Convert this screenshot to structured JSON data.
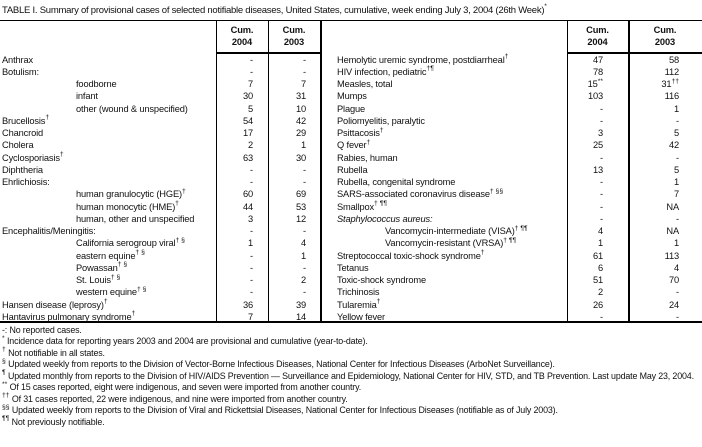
{
  "ink": "#000000",
  "title": {
    "text": "TABLE I. Summary of provisional cases of selected notifiable diseases, United States, cumulative, week ending July 3, 2004 (26th Week)",
    "sup": "*"
  },
  "header": {
    "cum": "Cum.",
    "y2004": "2004",
    "y2003": "2003"
  },
  "left_table": {
    "rows": [
      {
        "label": "Anthrax",
        "c2004": "-",
        "c2003": "-"
      },
      {
        "label": "Botulism:",
        "c2004": "-",
        "c2003": "-"
      },
      {
        "label": "foodborne",
        "indent": true,
        "c2004": "7",
        "c2003": "7"
      },
      {
        "label": "infant",
        "indent": true,
        "c2004": "30",
        "c2003": "31"
      },
      {
        "label": "other (wound & unspecified)",
        "indent": true,
        "c2004": "5",
        "c2003": "10"
      },
      {
        "label": "Brucellosis",
        "sup": "†",
        "c2004": "54",
        "c2003": "42"
      },
      {
        "label": "Chancroid",
        "c2004": "17",
        "c2003": "29"
      },
      {
        "label": "Cholera",
        "c2004": "2",
        "c2003": "1"
      },
      {
        "label": "Cyclosporiasis",
        "sup": "†",
        "c2004": "63",
        "c2003": "30"
      },
      {
        "label": "Diphtheria",
        "c2004": "-",
        "c2003": "-"
      },
      {
        "label": "Ehrlichiosis:",
        "c2004": "-",
        "c2003": "-"
      },
      {
        "label": "human granulocytic (HGE)",
        "sup": "†",
        "indent": true,
        "c2004": "60",
        "c2003": "69"
      },
      {
        "label": "human monocytic (HME)",
        "sup": "†",
        "indent": true,
        "c2004": "44",
        "c2003": "53"
      },
      {
        "label": "human, other and unspecified",
        "indent": true,
        "c2004": "3",
        "c2003": "12"
      },
      {
        "label": "Encephalitis/Meningitis:",
        "c2004": "-",
        "c2003": "-"
      },
      {
        "label": "California serogroup viral",
        "sup": "† §",
        "indent": true,
        "c2004": "1",
        "c2003": "4"
      },
      {
        "label": "eastern equine",
        "sup": "† §",
        "indent": true,
        "c2004": "-",
        "c2003": "1"
      },
      {
        "label": "Powassan",
        "sup": "† §",
        "indent": true,
        "c2004": "-",
        "c2003": "-"
      },
      {
        "label": "St. Louis",
        "sup": "† §",
        "indent": true,
        "c2004": "-",
        "c2003": "2"
      },
      {
        "label": "western equine",
        "sup": "† §",
        "indent": true,
        "c2004": "-",
        "c2003": "-"
      },
      {
        "label": "Hansen disease (leprosy)",
        "sup": "†",
        "c2004": "36",
        "c2003": "39"
      },
      {
        "label": "Hantavirus pulmonary syndrome",
        "sup": "†",
        "c2004": "7",
        "c2003": "14"
      }
    ]
  },
  "right_table": {
    "rows": [
      {
        "label": "Hemolytic uremic syndrome, postdiarrheal",
        "sup": "†",
        "c2004": "47",
        "c2003": "58"
      },
      {
        "label": "HIV infection, pediatric",
        "sup": "†¶",
        "c2004": "78",
        "c2003": "112"
      },
      {
        "label": "Measles, total",
        "c2004": "15",
        "c2004_sup": "**",
        "c2003": "31",
        "c2003_sup": "††"
      },
      {
        "label": "Mumps",
        "c2004": "103",
        "c2003": "116"
      },
      {
        "label": "Plague",
        "c2004": "-",
        "c2003": "1"
      },
      {
        "label": "Poliomyelitis, paralytic",
        "c2004": "-",
        "c2003": "-"
      },
      {
        "label": "Psittacosis",
        "sup": "†",
        "c2004": "3",
        "c2003": "5"
      },
      {
        "label": "Q fever",
        "sup": "†",
        "c2004": "25",
        "c2003": "42"
      },
      {
        "label": "Rabies, human",
        "c2004": "-",
        "c2003": "-"
      },
      {
        "label": "Rubella",
        "c2004": "13",
        "c2003": "5"
      },
      {
        "label": "Rubella, congenital syndrome",
        "c2004": "-",
        "c2003": "1"
      },
      {
        "label": "SARS-associated coronavirus disease",
        "sup": "† §§",
        "c2004": "-",
        "c2003": "7"
      },
      {
        "label": "Smallpox",
        "sup": "† ¶¶",
        "c2004": "-",
        "c2003": "NA"
      },
      {
        "label": "Staphylococcus aureus:",
        "italic": true,
        "c2004": "-",
        "c2003": "-"
      },
      {
        "label": "Vancomycin-intermediate (VISA)",
        "sup": "† ¶¶",
        "indent": true,
        "c2004": "4",
        "c2003": "NA"
      },
      {
        "label": "Vancomycin-resistant (VRSA)",
        "sup": "† ¶¶",
        "indent": true,
        "c2004": "1",
        "c2003": "1"
      },
      {
        "label": "Streptococcal toxic-shock syndrome",
        "sup": "†",
        "c2004": "61",
        "c2003": "113"
      },
      {
        "label": "Tetanus",
        "c2004": "6",
        "c2003": "4"
      },
      {
        "label": "Toxic-shock syndrome",
        "c2004": "51",
        "c2003": "70"
      },
      {
        "label": "Trichinosis",
        "c2004": "2",
        "c2003": "-"
      },
      {
        "label": "Tularemia",
        "sup": "†",
        "c2004": "26",
        "c2003": "24"
      },
      {
        "label": "Yellow fever",
        "c2004": "-",
        "c2003": "-"
      }
    ]
  },
  "footnotes": [
    {
      "sym": "-:",
      "sup": false,
      "text": "No reported cases."
    },
    {
      "sym": "*",
      "sup": true,
      "text": "Incidence data for reporting years 2003 and 2004 are provisional and cumulative (year-to-date)."
    },
    {
      "sym": "†",
      "sup": true,
      "text": "Not notifiable in all states."
    },
    {
      "sym": "§",
      "sup": true,
      "text": "Updated weekly from reports to the Division of Vector-Borne Infectious Diseases, National Center for Infectious Diseases (ArboNet Surveillance)."
    },
    {
      "sym": "¶",
      "sup": true,
      "text": "Updated monthly from reports to the Division of HIV/AIDS Prevention — Surveillance and Epidemiology, National Center for HIV, STD, and TB Prevention. Last update May 23, 2004."
    },
    {
      "sym": "**",
      "sup": true,
      "text": "Of 15 cases reported, eight were indigenous, and seven were imported from another country."
    },
    {
      "sym": "††",
      "sup": true,
      "text": "Of 31 cases reported, 22 were indigenous, and nine were imported from another country."
    },
    {
      "sym": "§§",
      "sup": true,
      "text": "Updated weekly from reports to the Division of Viral and Rickettsial Diseases, National Center for Infectious Diseases (notifiable as of July 2003)."
    },
    {
      "sym": "¶¶",
      "sup": true,
      "text": "Not previously notifiable."
    }
  ]
}
